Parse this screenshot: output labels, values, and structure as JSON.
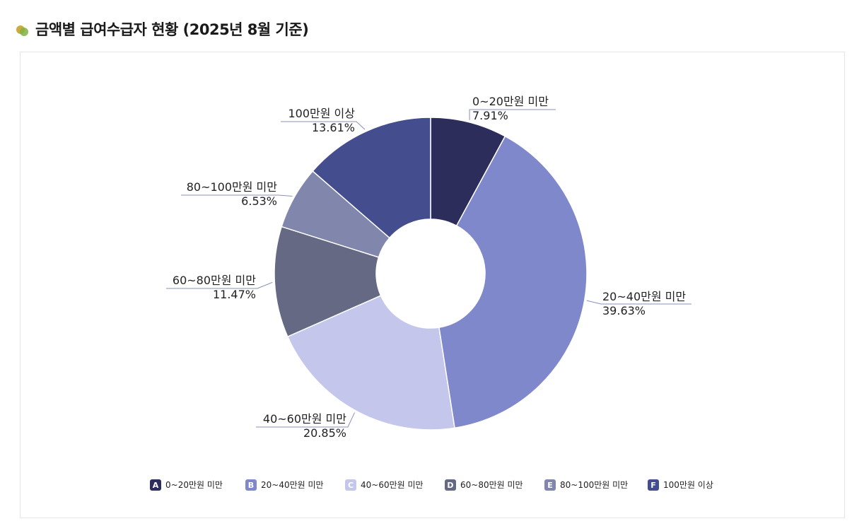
{
  "header": {
    "title": "금액별 급여수급자 현황 (2025년 8월 기준)"
  },
  "chart_data": {
    "type": "pie",
    "variant": "donut",
    "categories": [
      "0~20만원 미만",
      "20~40만원 미만",
      "40~60만원 미만",
      "60~80만원 미만",
      "80~100만원 미만",
      "100만원 이상"
    ],
    "values": [
      7.91,
      39.63,
      20.85,
      11.47,
      6.53,
      13.61
    ],
    "value_labels": [
      "7.91%",
      "39.63%",
      "20.85%",
      "11.47%",
      "6.53%",
      "13.61%"
    ],
    "legend_keys": [
      "A",
      "B",
      "C",
      "D",
      "E",
      "F"
    ],
    "colors": [
      "#2d2d5c",
      "#8088cc",
      "#c4c6ec",
      "#656983",
      "#8086ac",
      "#444d8e"
    ],
    "legend_position": "bottom"
  }
}
